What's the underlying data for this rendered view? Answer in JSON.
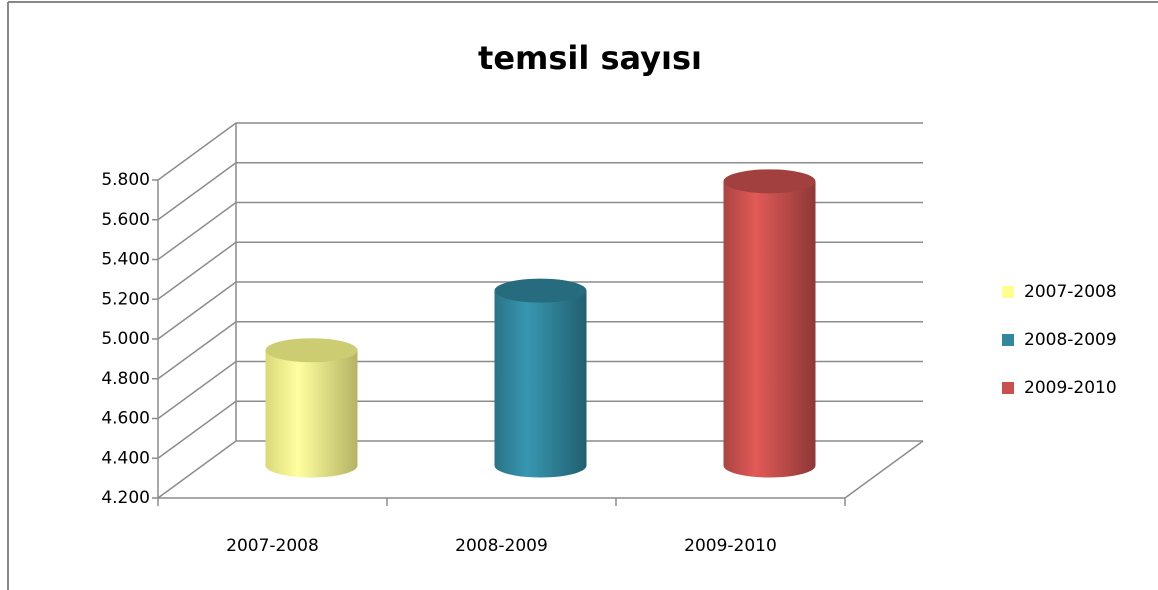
{
  "chart_data": {
    "type": "bar",
    "title": "temsil sayısı",
    "categories": [
      "2007-2008",
      "2008-2009",
      "2009-2010"
    ],
    "series": [
      {
        "name": "2007-2008",
        "color": "#ffff8f",
        "values": [
          4800,
          null,
          null
        ]
      },
      {
        "name": "2008-2009",
        "color": "#31879e",
        "values": [
          null,
          5100,
          null
        ]
      },
      {
        "name": "2009-2010",
        "color": "#c9504e",
        "values": [
          null,
          null,
          5650
        ]
      }
    ],
    "ylim": [
      4200,
      5800
    ],
    "yticks": [
      {
        "value": 4200,
        "label": "4.200"
      },
      {
        "value": 4400,
        "label": "4.400"
      },
      {
        "value": 4600,
        "label": "4.600"
      },
      {
        "value": 4800,
        "label": "4.800"
      },
      {
        "value": 5000,
        "label": "5.000"
      },
      {
        "value": 5200,
        "label": "5.200"
      },
      {
        "value": 5400,
        "label": "5.400"
      },
      {
        "value": 5600,
        "label": "5.600"
      },
      {
        "value": 5800,
        "label": "5.800"
      }
    ],
    "grid": true,
    "legend": "right"
  }
}
